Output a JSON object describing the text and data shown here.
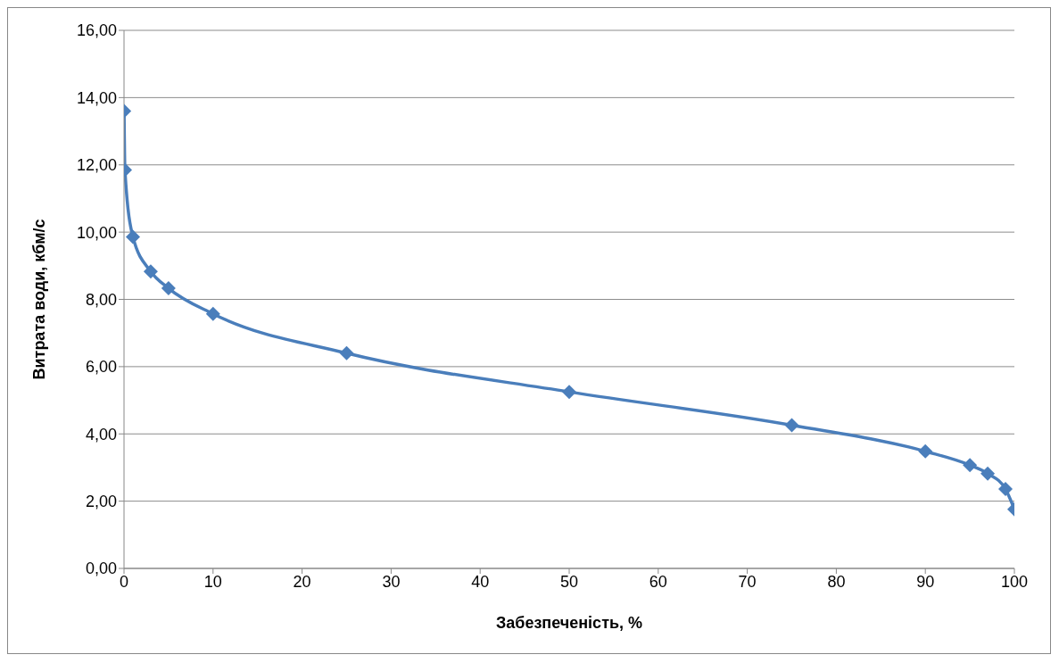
{
  "chart_data": {
    "type": "line",
    "xlabel": "Забезпеченість, %",
    "ylabel": "Витрата води, кбм/с",
    "x": [
      0.01,
      0.1,
      1,
      3,
      5,
      10,
      25,
      50,
      75,
      90,
      95,
      97,
      99,
      100
    ],
    "series": [
      {
        "color": "#4a7ebb",
        "values": [
          13.6,
          11.85,
          9.86,
          8.83,
          8.33,
          7.57,
          6.4,
          5.25,
          4.26,
          3.48,
          3.07,
          2.82,
          2.36,
          1.76
        ]
      }
    ],
    "xlim": [
      0,
      100
    ],
    "xticks": [
      0,
      10,
      20,
      30,
      40,
      50,
      60,
      70,
      80,
      90,
      100
    ],
    "ylim": [
      0,
      16
    ],
    "yticks": [
      {
        "value": 0,
        "label": "0,00"
      },
      {
        "value": 2,
        "label": "2,00"
      },
      {
        "value": 4,
        "label": "4,00"
      },
      {
        "value": 6,
        "label": "6,00"
      },
      {
        "value": 8,
        "label": "8,00"
      },
      {
        "value": 10,
        "label": "10,00"
      },
      {
        "value": 12,
        "label": "12,00"
      },
      {
        "value": 14,
        "label": "14,00"
      },
      {
        "value": 16,
        "label": "16,00"
      }
    ],
    "grid": "y",
    "marker": "diamond",
    "line_style": "solid",
    "legend": false
  }
}
